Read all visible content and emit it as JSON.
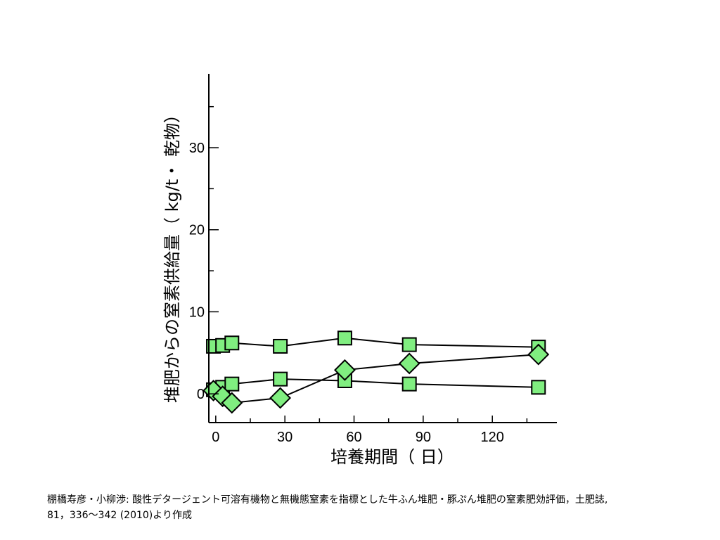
{
  "chart_data": {
    "type": "line",
    "xlabel": "培養期間（ 日）",
    "ylabel": "堆肥からの窒素供給量（ kg/t・ 乾物）",
    "xlim": [
      -3,
      148
    ],
    "ylim": [
      -3.5,
      39
    ],
    "xticks": [
      0,
      30,
      60,
      90,
      120
    ],
    "yticks": [
      0,
      10,
      20,
      30
    ],
    "grid": false,
    "legend": "none",
    "marker_color": "#80ee80",
    "series": [
      {
        "marker": "square",
        "x": [
          -1,
          3,
          7,
          28,
          56,
          84,
          140
        ],
        "y": [
          5.8,
          5.9,
          6.2,
          5.8,
          6.8,
          6.0,
          5.7
        ]
      },
      {
        "marker": "square",
        "x": [
          -1,
          3,
          7,
          28,
          56,
          84,
          140
        ],
        "y": [
          0.5,
          0.8,
          1.2,
          1.8,
          1.6,
          1.2,
          0.8
        ]
      },
      {
        "marker": "diamond",
        "x": [
          -1,
          3,
          7,
          28,
          56,
          84,
          140
        ],
        "y": [
          0.4,
          -0.3,
          -1.1,
          -0.5,
          2.9,
          3.7,
          4.8
        ]
      }
    ]
  },
  "citation": {
    "line1": "棚橋寿彦・小柳渉: 酸性デタージェント可溶有機物と無機態窒素を指標とした牛ふん堆肥・豚ぷん堆肥の窒素肥効評価，土肥誌,",
    "line2": "81，336～342 (2010)より作成"
  }
}
